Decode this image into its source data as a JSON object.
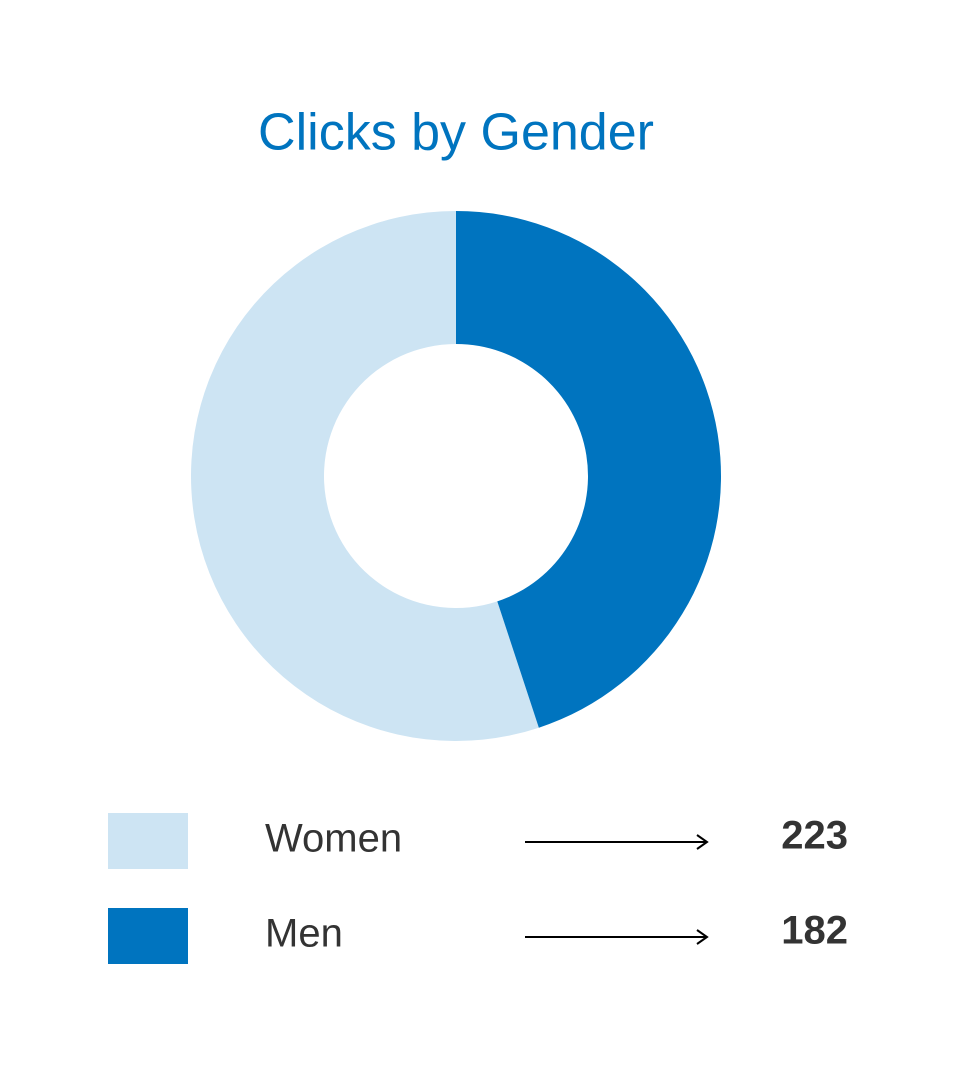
{
  "chart_data": {
    "type": "donut",
    "title": "Clicks by Gender",
    "categories": [
      "Women",
      "Men"
    ],
    "values": [
      223,
      182
    ],
    "colors": [
      "#cde4f3",
      "#0074bf"
    ]
  }
}
